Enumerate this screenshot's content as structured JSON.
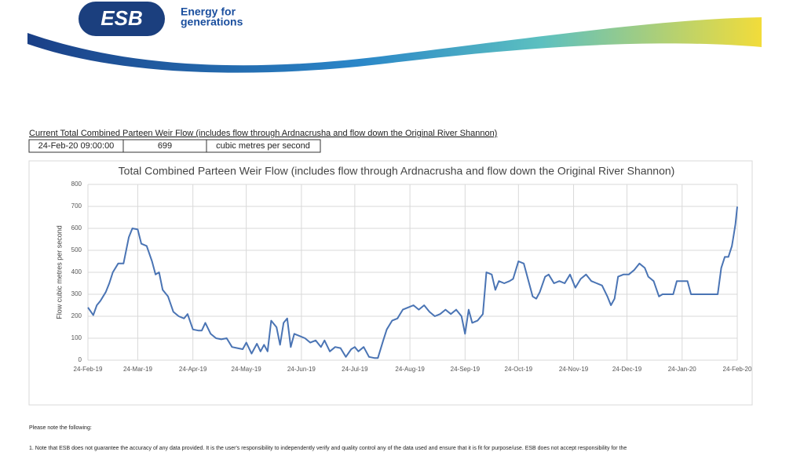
{
  "header": {
    "logo": "ESB",
    "tagline": [
      "Energy for",
      "generations"
    ]
  },
  "current": {
    "caption": "Current Total Combined Parteen Weir Flow (includes flow through Ardnacrusha and flow down the Original River Shannon)",
    "row": [
      "24-Feb-20 09:00:00",
      "699",
      "cubic metres per second"
    ]
  },
  "chart_data": {
    "type": "line",
    "title": "Total Combined Parteen Weir Flow (includes flow through Ardnacrusha and flow down the Original River Shannon)",
    "y_label": "Flow cubic metres per second",
    "x": [
      "2019-02-24",
      "2019-02-27",
      "2019-03-01",
      "2019-03-03",
      "2019-03-06",
      "2019-03-08",
      "2019-03-10",
      "2019-03-13",
      "2019-03-16",
      "2019-03-19",
      "2019-03-21",
      "2019-03-24",
      "2019-03-26",
      "2019-03-29",
      "2019-04-01",
      "2019-04-03",
      "2019-04-05",
      "2019-04-07",
      "2019-04-10",
      "2019-04-13",
      "2019-04-16",
      "2019-04-19",
      "2019-04-21",
      "2019-04-24",
      "2019-04-27",
      "2019-04-29",
      "2019-05-01",
      "2019-05-04",
      "2019-05-07",
      "2019-05-10",
      "2019-05-13",
      "2019-05-16",
      "2019-05-19",
      "2019-05-22",
      "2019-05-24",
      "2019-05-27",
      "2019-05-30",
      "2019-06-01",
      "2019-06-03",
      "2019-06-05",
      "2019-06-07",
      "2019-06-10",
      "2019-06-12",
      "2019-06-14",
      "2019-06-16",
      "2019-06-18",
      "2019-06-20",
      "2019-06-23",
      "2019-06-26",
      "2019-06-29",
      "2019-07-02",
      "2019-07-05",
      "2019-07-07",
      "2019-07-10",
      "2019-07-13",
      "2019-07-16",
      "2019-07-19",
      "2019-07-22",
      "2019-07-24",
      "2019-07-26",
      "2019-07-29",
      "2019-08-01",
      "2019-08-04",
      "2019-08-06",
      "2019-08-09",
      "2019-08-11",
      "2019-08-14",
      "2019-08-17",
      "2019-08-20",
      "2019-08-23",
      "2019-08-26",
      "2019-08-29",
      "2019-09-01",
      "2019-09-04",
      "2019-09-07",
      "2019-09-10",
      "2019-09-13",
      "2019-09-16",
      "2019-09-19",
      "2019-09-22",
      "2019-09-24",
      "2019-09-26",
      "2019-09-28",
      "2019-10-01",
      "2019-10-04",
      "2019-10-06",
      "2019-10-09",
      "2019-10-11",
      "2019-10-13",
      "2019-10-16",
      "2019-10-19",
      "2019-10-21",
      "2019-10-24",
      "2019-10-27",
      "2019-10-30",
      "2019-11-01",
      "2019-11-03",
      "2019-11-05",
      "2019-11-08",
      "2019-11-10",
      "2019-11-13",
      "2019-11-16",
      "2019-11-19",
      "2019-11-22",
      "2019-11-25",
      "2019-11-28",
      "2019-12-01",
      "2019-12-04",
      "2019-12-07",
      "2019-12-10",
      "2019-12-13",
      "2019-12-15",
      "2019-12-17",
      "2019-12-19",
      "2019-12-22",
      "2019-12-25",
      "2019-12-28",
      "2019-12-31",
      "2020-01-03",
      "2020-01-05",
      "2020-01-08",
      "2020-01-11",
      "2020-01-13",
      "2020-01-16",
      "2020-01-19",
      "2020-01-21",
      "2020-01-24",
      "2020-01-27",
      "2020-01-29",
      "2020-02-01",
      "2020-02-04",
      "2020-02-07",
      "2020-02-10",
      "2020-02-12",
      "2020-02-13",
      "2020-02-15",
      "2020-02-17",
      "2020-02-19",
      "2020-02-21",
      "2020-02-22",
      "2020-02-23",
      "2020-02-24"
    ],
    "series": [
      {
        "color": "#4a74b4",
        "values": [
          240,
          205,
          250,
          270,
          310,
          350,
          400,
          440,
          440,
          560,
          600,
          595,
          530,
          520,
          450,
          390,
          400,
          320,
          290,
          220,
          200,
          190,
          210,
          140,
          135,
          135,
          170,
          120,
          100,
          95,
          100,
          60,
          55,
          50,
          80,
          30,
          75,
          40,
          70,
          40,
          180,
          150,
          70,
          170,
          190,
          60,
          120,
          110,
          100,
          80,
          90,
          60,
          90,
          40,
          60,
          55,
          15,
          50,
          60,
          40,
          60,
          15,
          10,
          10,
          90,
          140,
          180,
          190,
          230,
          240,
          250,
          230,
          250,
          220,
          200,
          210,
          230,
          210,
          230,
          200,
          120,
          230,
          170,
          180,
          210,
          400,
          390,
          320,
          360,
          350,
          360,
          370,
          450,
          440,
          350,
          290,
          280,
          310,
          380,
          390,
          350,
          360,
          350,
          390,
          330,
          370,
          390,
          360,
          350,
          340,
          290,
          250,
          280,
          380,
          390,
          390,
          410,
          440,
          420,
          380,
          360,
          290,
          300,
          300,
          300,
          360,
          360,
          360,
          300,
          300,
          300,
          300,
          300,
          300,
          300,
          420,
          470,
          470,
          520,
          570,
          620,
          699
        ]
      }
    ],
    "xlim": [
      "2019-02-24",
      "2020-02-24"
    ],
    "xticks": [
      {
        "value": "2019-02-24",
        "label": "24-Feb-19"
      },
      {
        "value": "2019-03-24",
        "label": "24-Mar-19"
      },
      {
        "value": "2019-04-24",
        "label": "24-Apr-19"
      },
      {
        "value": "2019-05-24",
        "label": "24-May-19"
      },
      {
        "value": "2019-06-24",
        "label": "24-Jun-19"
      },
      {
        "value": "2019-07-24",
        "label": "24-Jul-19"
      },
      {
        "value": "2019-08-24",
        "label": "24-Aug-19"
      },
      {
        "value": "2019-09-24",
        "label": "24-Sep-19"
      },
      {
        "value": "2019-10-24",
        "label": "24-Oct-19"
      },
      {
        "value": "2019-11-24",
        "label": "24-Nov-19"
      },
      {
        "value": "2019-12-24",
        "label": "24-Dec-19"
      },
      {
        "value": "2020-01-24",
        "label": "24-Jan-20"
      },
      {
        "value": "2020-02-24",
        "label": "24-Feb-20"
      }
    ],
    "ylim": [
      0,
      800
    ],
    "yticks": [
      0,
      100,
      200,
      300,
      400,
      500,
      600,
      700,
      800
    ],
    "grid": true
  },
  "notes": {
    "heading": "Please note the following:",
    "items": [
      "1. Note that ESB does not guarantee the accuracy of any data provided. It is the user's responsibility to independently verify and quality control any of the data used and ensure that it is fit for purpose/use. ESB does not accept responsibility for the"
    ]
  }
}
